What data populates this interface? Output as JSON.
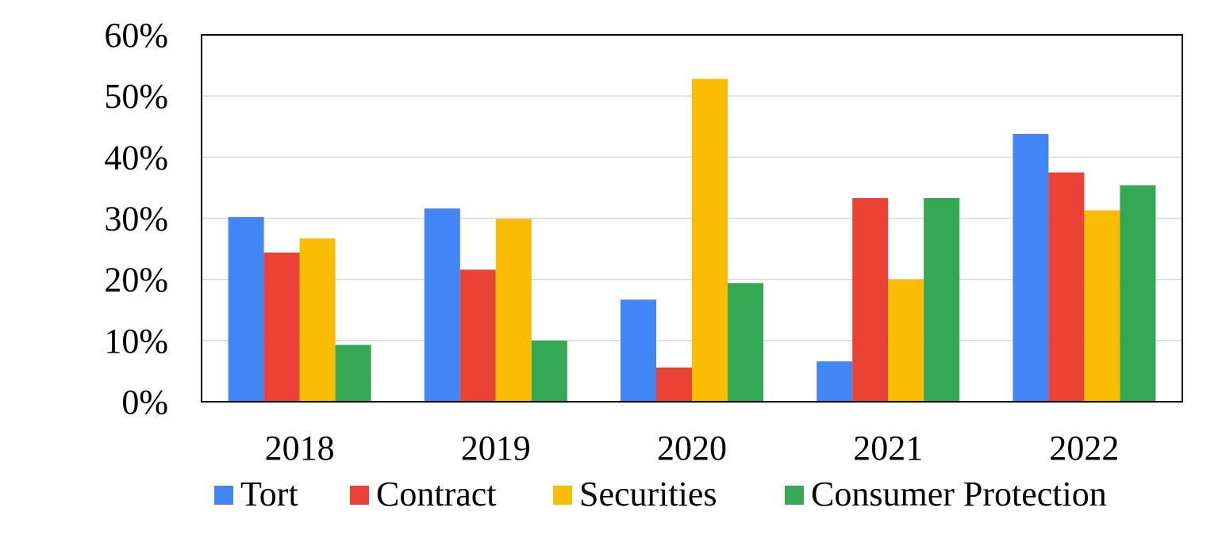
{
  "chart_data": {
    "type": "bar",
    "categories": [
      "2018",
      "2019",
      "2020",
      "2021",
      "2022"
    ],
    "series": [
      {
        "name": "Tort",
        "color": "#4285F4",
        "values": [
          30.2,
          31.6,
          16.7,
          6.6,
          43.8
        ]
      },
      {
        "name": "Contract",
        "color": "#EA4335",
        "values": [
          24.4,
          21.6,
          5.6,
          33.3,
          37.5
        ]
      },
      {
        "name": "Securities",
        "color": "#FBBC04",
        "values": [
          26.7,
          29.9,
          52.8,
          20.0,
          31.3
        ]
      },
      {
        "name": "Consumer Protection",
        "color": "#34A853",
        "values": [
          9.3,
          10.0,
          19.4,
          33.3,
          35.4
        ]
      }
    ],
    "title": "",
    "xlabel": "",
    "ylabel": "",
    "ylim": [
      0,
      60
    ],
    "yticks": [
      "0%",
      "10%",
      "20%",
      "30%",
      "40%",
      "50%",
      "60%"
    ],
    "grid": true,
    "legend_position": "bottom"
  }
}
